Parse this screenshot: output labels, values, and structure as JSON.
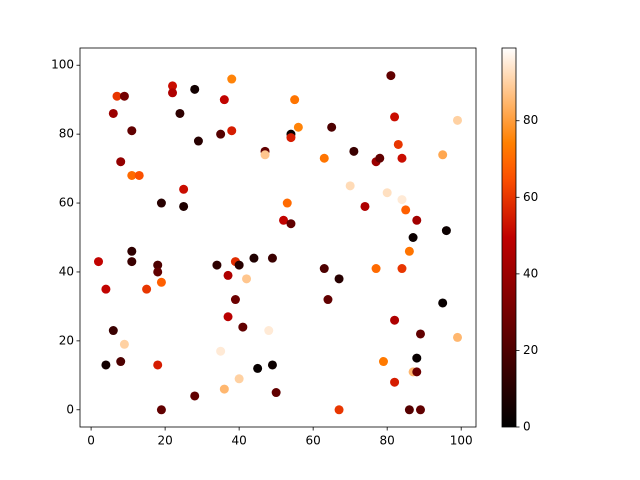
{
  "chart_data": {
    "type": "scatter",
    "colormap": "gist_heat",
    "xlim": [
      -3,
      104
    ],
    "ylim": [
      -5,
      105
    ],
    "xticks": [
      0,
      20,
      40,
      60,
      80,
      100
    ],
    "yticks": [
      0,
      20,
      40,
      60,
      80,
      100
    ],
    "clim": [
      0,
      99
    ],
    "cticks": [
      0,
      20,
      40,
      60,
      80
    ],
    "x": [
      2,
      4,
      4,
      6,
      6,
      7,
      9,
      8,
      8,
      9,
      11,
      11,
      13,
      11,
      11,
      15,
      18,
      18,
      18,
      19,
      19,
      19,
      22,
      22,
      24,
      25,
      25,
      28,
      28,
      29,
      34,
      35,
      35,
      36,
      36,
      38,
      38,
      37,
      37,
      39,
      39,
      40,
      40,
      41,
      42,
      44,
      45,
      47,
      47,
      49,
      49,
      48,
      50,
      52,
      53,
      54,
      54,
      54,
      55,
      56,
      65,
      63,
      63,
      64,
      67,
      67,
      70,
      71,
      74,
      77,
      78,
      77,
      80,
      79,
      81,
      82,
      82,
      82,
      83,
      84,
      84,
      84,
      85,
      86,
      86,
      87,
      88,
      87,
      88,
      88,
      89,
      89,
      95,
      95,
      96,
      99,
      99
    ],
    "values": [
      43,
      35,
      13,
      23,
      86,
      91,
      91,
      72,
      14,
      19,
      81,
      68,
      68,
      46,
      43,
      35,
      42,
      40,
      13,
      37,
      60,
      0,
      94,
      92,
      86,
      64,
      59,
      93,
      4,
      78,
      42,
      80,
      17,
      90,
      6,
      96,
      81,
      39,
      27,
      43,
      32,
      42,
      9,
      24,
      38,
      44,
      12,
      75,
      74,
      44,
      13,
      23,
      5,
      55,
      60,
      54,
      80,
      79,
      90,
      82,
      82,
      73,
      41,
      32,
      38,
      0,
      65,
      75,
      59,
      72,
      73,
      41,
      63,
      14,
      97,
      85,
      26,
      8,
      77,
      73,
      41,
      61,
      58,
      46,
      0,
      50,
      55,
      11,
      11,
      15,
      22,
      0,
      31,
      74,
      52,
      84,
      21
    ],
    "color_values": [
      50,
      50,
      5,
      15,
      40,
      60,
      30,
      38,
      20,
      90,
      25,
      70,
      65,
      12,
      15,
      60,
      20,
      25,
      55,
      68,
      10,
      25,
      52,
      45,
      12,
      52,
      8,
      5,
      25,
      10,
      12,
      22,
      95,
      50,
      85,
      75,
      55,
      45,
      48,
      58,
      28,
      10,
      90,
      25,
      88,
      8,
      2,
      25,
      88,
      15,
      3,
      95,
      25,
      50,
      70,
      25,
      2,
      55,
      72,
      75,
      20,
      72,
      20,
      25,
      10,
      60,
      92,
      15,
      45,
      40,
      25,
      70,
      93,
      73,
      25,
      52,
      45,
      55,
      60,
      52,
      60,
      95,
      68,
      72,
      22,
      3,
      42,
      85,
      28,
      2,
      25,
      25,
      2,
      82,
      3,
      90,
      85
    ]
  }
}
